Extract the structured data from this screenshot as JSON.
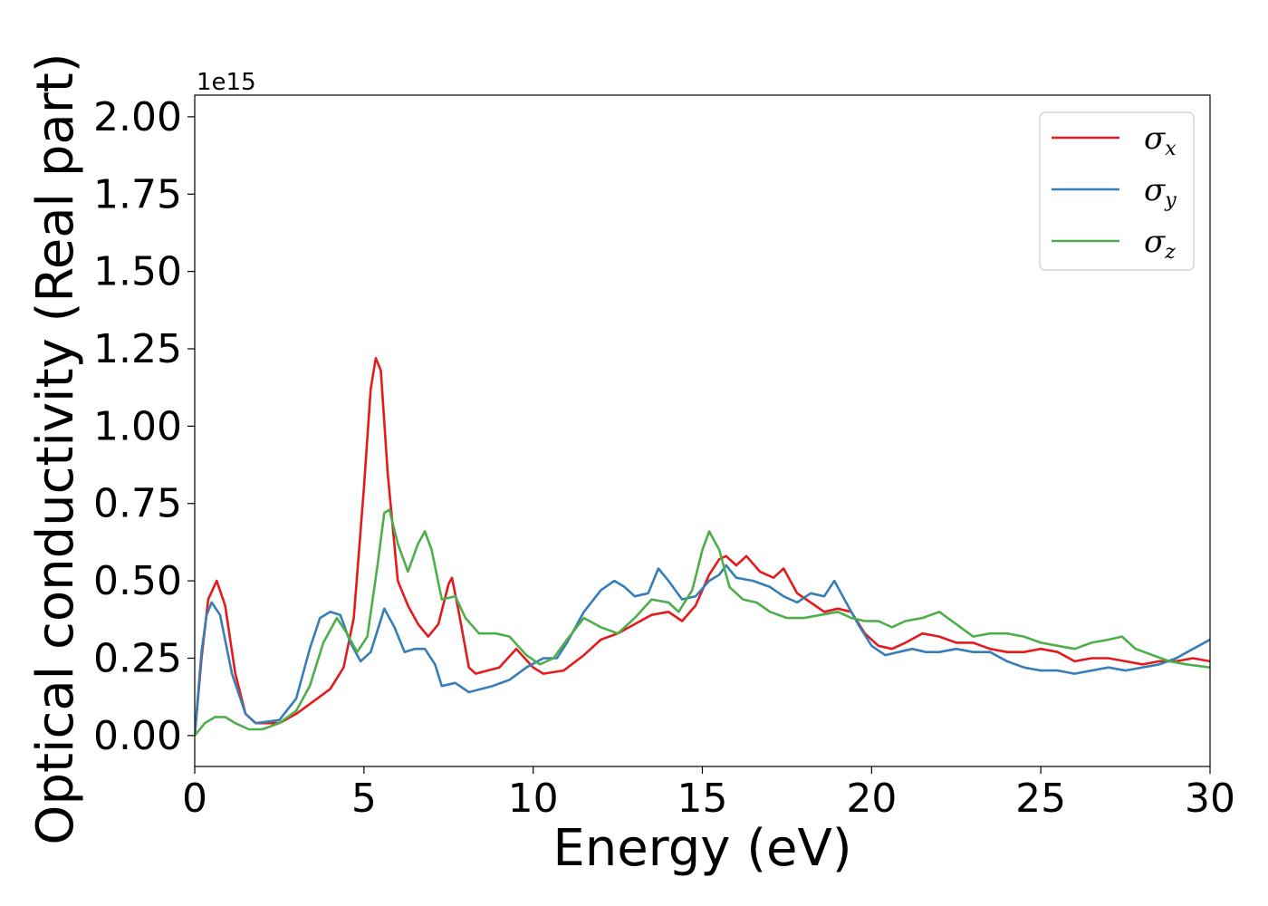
{
  "chart_data": {
    "type": "line",
    "xlabel": "Energy (eV)",
    "ylabel": "Optical conductivity (Real part)",
    "y_offset_text": "1e15",
    "xlim": [
      0,
      30
    ],
    "ylim": [
      -0.1,
      2.07
    ],
    "x_ticks": [
      0,
      5,
      10,
      15,
      20,
      25,
      30
    ],
    "x_tick_labels": [
      "0",
      "5",
      "10",
      "15",
      "20",
      "25",
      "30"
    ],
    "y_ticks": [
      0.0,
      0.25,
      0.5,
      0.75,
      1.0,
      1.25,
      1.5,
      1.75,
      2.0
    ],
    "y_tick_labels": [
      "0.00",
      "0.25",
      "0.50",
      "0.75",
      "1.00",
      "1.25",
      "1.50",
      "1.75",
      "2.00"
    ],
    "grid": false,
    "legend_position": "top-right",
    "series": [
      {
        "name": "σx",
        "symbol": "σ",
        "subscript": "x",
        "color": "#e41a1c",
        "points": [
          [
            0,
            0.0
          ],
          [
            0.2,
            0.25
          ],
          [
            0.4,
            0.44
          ],
          [
            0.65,
            0.5
          ],
          [
            0.9,
            0.42
          ],
          [
            1.2,
            0.2
          ],
          [
            1.5,
            0.07
          ],
          [
            1.8,
            0.04
          ],
          [
            2.5,
            0.04
          ],
          [
            3.0,
            0.07
          ],
          [
            3.5,
            0.11
          ],
          [
            4.0,
            0.15
          ],
          [
            4.4,
            0.22
          ],
          [
            4.7,
            0.38
          ],
          [
            5.0,
            0.8
          ],
          [
            5.2,
            1.12
          ],
          [
            5.35,
            1.22
          ],
          [
            5.5,
            1.18
          ],
          [
            5.7,
            0.85
          ],
          [
            6.0,
            0.5
          ],
          [
            6.3,
            0.42
          ],
          [
            6.6,
            0.36
          ],
          [
            6.9,
            0.32
          ],
          [
            7.2,
            0.36
          ],
          [
            7.5,
            0.49
          ],
          [
            7.6,
            0.51
          ],
          [
            7.8,
            0.4
          ],
          [
            8.1,
            0.22
          ],
          [
            8.3,
            0.2
          ],
          [
            9.0,
            0.22
          ],
          [
            9.5,
            0.28
          ],
          [
            10.0,
            0.22
          ],
          [
            10.3,
            0.2
          ],
          [
            10.9,
            0.21
          ],
          [
            11.5,
            0.26
          ],
          [
            12.0,
            0.31
          ],
          [
            12.5,
            0.33
          ],
          [
            13.0,
            0.36
          ],
          [
            13.5,
            0.39
          ],
          [
            14.0,
            0.4
          ],
          [
            14.4,
            0.37
          ],
          [
            14.8,
            0.42
          ],
          [
            15.2,
            0.52
          ],
          [
            15.5,
            0.57
          ],
          [
            15.7,
            0.58
          ],
          [
            16.0,
            0.55
          ],
          [
            16.3,
            0.58
          ],
          [
            16.7,
            0.53
          ],
          [
            17.1,
            0.51
          ],
          [
            17.4,
            0.54
          ],
          [
            17.8,
            0.46
          ],
          [
            18.2,
            0.43
          ],
          [
            18.6,
            0.4
          ],
          [
            19.0,
            0.41
          ],
          [
            19.4,
            0.4
          ],
          [
            19.8,
            0.33
          ],
          [
            20.2,
            0.29
          ],
          [
            20.6,
            0.28
          ],
          [
            21.0,
            0.3
          ],
          [
            21.5,
            0.33
          ],
          [
            22.0,
            0.32
          ],
          [
            22.5,
            0.3
          ],
          [
            23.0,
            0.3
          ],
          [
            23.5,
            0.28
          ],
          [
            24.0,
            0.27
          ],
          [
            24.5,
            0.27
          ],
          [
            25.0,
            0.28
          ],
          [
            25.5,
            0.27
          ],
          [
            26.0,
            0.24
          ],
          [
            26.5,
            0.25
          ],
          [
            27.0,
            0.25
          ],
          [
            27.5,
            0.24
          ],
          [
            28.0,
            0.23
          ],
          [
            28.5,
            0.24
          ],
          [
            29.0,
            0.24
          ],
          [
            29.5,
            0.25
          ],
          [
            30.0,
            0.24
          ]
        ]
      },
      {
        "name": "σy",
        "symbol": "σ",
        "subscript": "y",
        "color": "#377eb8",
        "points": [
          [
            0,
            0.0
          ],
          [
            0.2,
            0.27
          ],
          [
            0.35,
            0.39
          ],
          [
            0.5,
            0.43
          ],
          [
            0.75,
            0.39
          ],
          [
            1.1,
            0.2
          ],
          [
            1.5,
            0.07
          ],
          [
            1.8,
            0.04
          ],
          [
            2.5,
            0.05
          ],
          [
            3.0,
            0.12
          ],
          [
            3.4,
            0.28
          ],
          [
            3.7,
            0.38
          ],
          [
            4.0,
            0.4
          ],
          [
            4.3,
            0.39
          ],
          [
            4.6,
            0.3
          ],
          [
            4.9,
            0.24
          ],
          [
            5.2,
            0.27
          ],
          [
            5.6,
            0.41
          ],
          [
            5.9,
            0.35
          ],
          [
            6.2,
            0.27
          ],
          [
            6.5,
            0.28
          ],
          [
            6.8,
            0.28
          ],
          [
            7.1,
            0.23
          ],
          [
            7.3,
            0.16
          ],
          [
            7.7,
            0.17
          ],
          [
            8.1,
            0.14
          ],
          [
            8.8,
            0.16
          ],
          [
            9.3,
            0.18
          ],
          [
            9.8,
            0.22
          ],
          [
            10.3,
            0.25
          ],
          [
            10.7,
            0.25
          ],
          [
            11.0,
            0.3
          ],
          [
            11.5,
            0.4
          ],
          [
            12.0,
            0.47
          ],
          [
            12.4,
            0.5
          ],
          [
            12.7,
            0.48
          ],
          [
            13.0,
            0.45
          ],
          [
            13.4,
            0.46
          ],
          [
            13.7,
            0.54
          ],
          [
            14.0,
            0.5
          ],
          [
            14.4,
            0.44
          ],
          [
            14.8,
            0.45
          ],
          [
            15.2,
            0.5
          ],
          [
            15.5,
            0.52
          ],
          [
            15.7,
            0.55
          ],
          [
            16.0,
            0.51
          ],
          [
            16.5,
            0.5
          ],
          [
            17.0,
            0.48
          ],
          [
            17.4,
            0.45
          ],
          [
            17.8,
            0.43
          ],
          [
            18.2,
            0.46
          ],
          [
            18.6,
            0.45
          ],
          [
            18.9,
            0.5
          ],
          [
            19.2,
            0.44
          ],
          [
            19.6,
            0.36
          ],
          [
            20.0,
            0.29
          ],
          [
            20.4,
            0.26
          ],
          [
            20.8,
            0.27
          ],
          [
            21.2,
            0.28
          ],
          [
            21.6,
            0.27
          ],
          [
            22.0,
            0.27
          ],
          [
            22.5,
            0.28
          ],
          [
            23.0,
            0.27
          ],
          [
            23.5,
            0.27
          ],
          [
            24.0,
            0.24
          ],
          [
            24.5,
            0.22
          ],
          [
            25.0,
            0.21
          ],
          [
            25.5,
            0.21
          ],
          [
            26.0,
            0.2
          ],
          [
            26.5,
            0.21
          ],
          [
            27.0,
            0.22
          ],
          [
            27.5,
            0.21
          ],
          [
            28.0,
            0.22
          ],
          [
            28.5,
            0.23
          ],
          [
            29.0,
            0.25
          ],
          [
            29.5,
            0.28
          ],
          [
            30.0,
            0.31
          ]
        ]
      },
      {
        "name": "σz",
        "symbol": "σ",
        "subscript": "z",
        "color": "#4daf4a",
        "points": [
          [
            0,
            0.0
          ],
          [
            0.3,
            0.04
          ],
          [
            0.6,
            0.06
          ],
          [
            0.9,
            0.06
          ],
          [
            1.2,
            0.04
          ],
          [
            1.6,
            0.02
          ],
          [
            2.0,
            0.02
          ],
          [
            2.5,
            0.04
          ],
          [
            3.0,
            0.08
          ],
          [
            3.4,
            0.16
          ],
          [
            3.8,
            0.3
          ],
          [
            4.2,
            0.38
          ],
          [
            4.5,
            0.33
          ],
          [
            4.8,
            0.27
          ],
          [
            5.1,
            0.32
          ],
          [
            5.4,
            0.55
          ],
          [
            5.6,
            0.72
          ],
          [
            5.75,
            0.73
          ],
          [
            6.0,
            0.62
          ],
          [
            6.3,
            0.53
          ],
          [
            6.6,
            0.62
          ],
          [
            6.8,
            0.66
          ],
          [
            7.0,
            0.6
          ],
          [
            7.3,
            0.44
          ],
          [
            7.7,
            0.45
          ],
          [
            8.0,
            0.38
          ],
          [
            8.4,
            0.33
          ],
          [
            8.9,
            0.33
          ],
          [
            9.3,
            0.32
          ],
          [
            9.8,
            0.26
          ],
          [
            10.2,
            0.23
          ],
          [
            10.6,
            0.25
          ],
          [
            11.0,
            0.31
          ],
          [
            11.5,
            0.38
          ],
          [
            12.0,
            0.35
          ],
          [
            12.5,
            0.33
          ],
          [
            13.0,
            0.38
          ],
          [
            13.5,
            0.44
          ],
          [
            14.0,
            0.43
          ],
          [
            14.3,
            0.4
          ],
          [
            14.7,
            0.47
          ],
          [
            15.0,
            0.6
          ],
          [
            15.2,
            0.66
          ],
          [
            15.5,
            0.6
          ],
          [
            15.8,
            0.48
          ],
          [
            16.2,
            0.44
          ],
          [
            16.6,
            0.43
          ],
          [
            17.0,
            0.4
          ],
          [
            17.5,
            0.38
          ],
          [
            18.0,
            0.38
          ],
          [
            18.5,
            0.39
          ],
          [
            19.0,
            0.4
          ],
          [
            19.4,
            0.38
          ],
          [
            19.8,
            0.37
          ],
          [
            20.2,
            0.37
          ],
          [
            20.6,
            0.35
          ],
          [
            21.0,
            0.37
          ],
          [
            21.5,
            0.38
          ],
          [
            22.0,
            0.4
          ],
          [
            22.5,
            0.36
          ],
          [
            23.0,
            0.32
          ],
          [
            23.5,
            0.33
          ],
          [
            24.0,
            0.33
          ],
          [
            24.5,
            0.32
          ],
          [
            25.0,
            0.3
          ],
          [
            25.5,
            0.29
          ],
          [
            26.0,
            0.28
          ],
          [
            26.5,
            0.3
          ],
          [
            27.0,
            0.31
          ],
          [
            27.4,
            0.32
          ],
          [
            27.8,
            0.28
          ],
          [
            28.3,
            0.26
          ],
          [
            28.8,
            0.24
          ],
          [
            29.3,
            0.23
          ],
          [
            30.0,
            0.22
          ]
        ]
      }
    ]
  }
}
